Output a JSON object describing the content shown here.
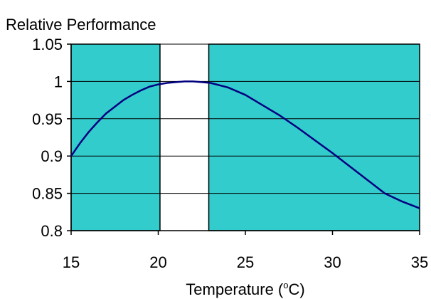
{
  "chart_data": {
    "type": "line",
    "ylabel": "Relative Performance",
    "xlabel_main": "Temperature (",
    "xlabel_sup": "o",
    "xlabel_unit": "C)",
    "xlim": [
      15,
      35
    ],
    "ylim": [
      0.8,
      1.05
    ],
    "xticks": [
      15,
      20,
      25,
      30,
      35
    ],
    "yticks": [
      0.8,
      0.85,
      0.9,
      0.95,
      1,
      1.05
    ],
    "ytick_labels": [
      "0.8",
      "0.85",
      "0.9",
      "0.95",
      "1",
      "1.05"
    ],
    "xtick_labels": [
      "15",
      "20",
      "25",
      "30",
      "35"
    ],
    "shaded_regions": [
      {
        "x_from": 15,
        "x_to": 20.1,
        "color": "#33CCCC"
      },
      {
        "x_from": 22.9,
        "x_to": 35,
        "color": "#33CCCC"
      }
    ],
    "grid_y": true,
    "series": [
      {
        "color": "#000080",
        "x": [
          15,
          15.5,
          16,
          16.5,
          17,
          17.5,
          18,
          18.5,
          19,
          19.5,
          20,
          20.5,
          21,
          21.5,
          22,
          22.5,
          23,
          24,
          25,
          26,
          27,
          28,
          29,
          30,
          31,
          32,
          33,
          34,
          35
        ],
        "y": [
          0.9,
          0.917,
          0.932,
          0.945,
          0.957,
          0.966,
          0.975,
          0.982,
          0.988,
          0.993,
          0.996,
          0.998,
          0.999,
          1.0,
          1.0,
          0.999,
          0.998,
          0.992,
          0.982,
          0.968,
          0.954,
          0.938,
          0.921,
          0.904,
          0.886,
          0.868,
          0.85,
          0.839,
          0.83
        ]
      }
    ]
  }
}
